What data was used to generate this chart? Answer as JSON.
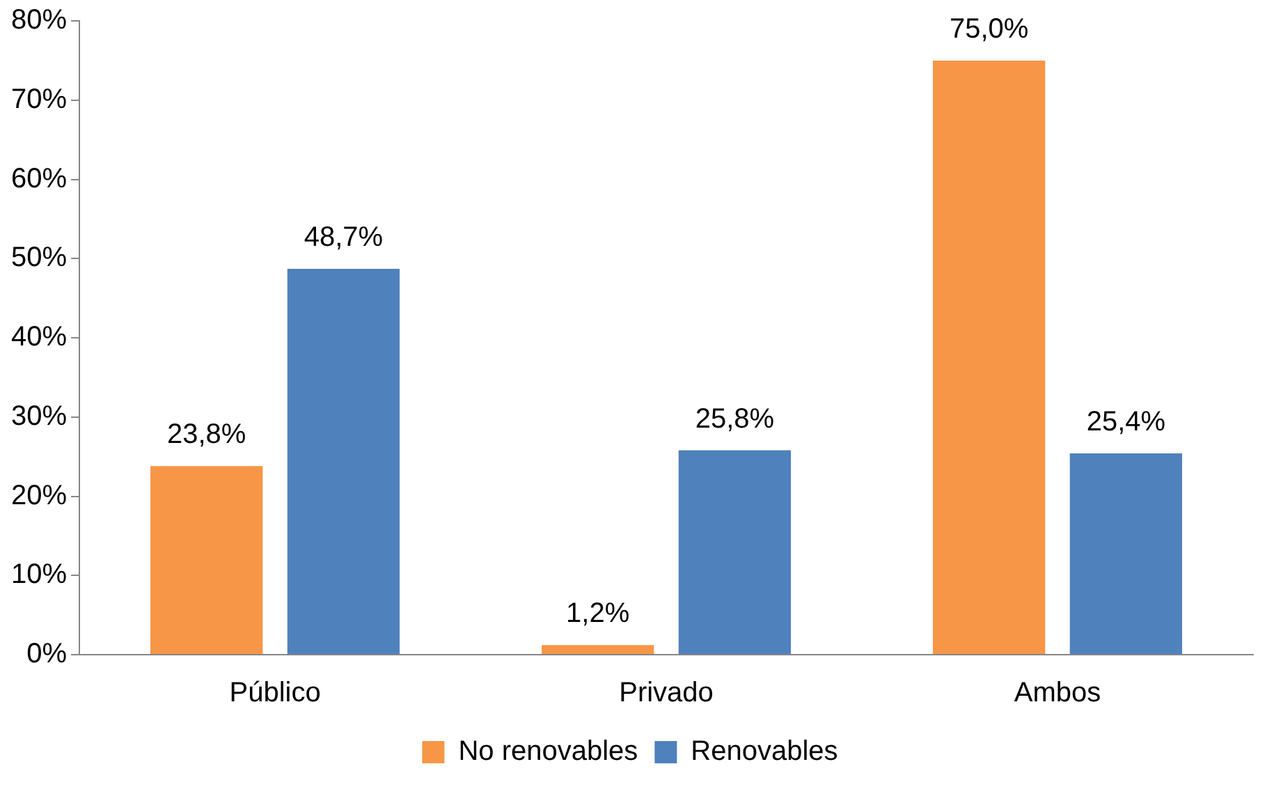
{
  "chart_data": {
    "type": "bar",
    "categories": [
      "Público",
      "Privado",
      "Ambos"
    ],
    "series": [
      {
        "name": "No renovables",
        "color": "#f79646",
        "values": [
          23.8,
          1.2,
          75.0
        ],
        "value_labels": [
          "23,8%",
          "1,2%",
          "75,0%"
        ]
      },
      {
        "name": "Renovables",
        "color": "#4f81bd",
        "values": [
          48.7,
          25.8,
          25.4
        ],
        "value_labels": [
          "48,7%",
          "25,8%",
          "25,4%"
        ]
      }
    ],
    "ylim": [
      0,
      80
    ],
    "yticks": [
      {
        "value": 0,
        "label": "0%"
      },
      {
        "value": 10,
        "label": "10%"
      },
      {
        "value": 20,
        "label": "20%"
      },
      {
        "value": 30,
        "label": "30%"
      },
      {
        "value": 40,
        "label": "40%"
      },
      {
        "value": 50,
        "label": "50%"
      },
      {
        "value": 60,
        "label": "60%"
      },
      {
        "value": 70,
        "label": "70%"
      },
      {
        "value": 80,
        "label": "80%"
      }
    ],
    "grid": false,
    "legend": "bottom"
  }
}
